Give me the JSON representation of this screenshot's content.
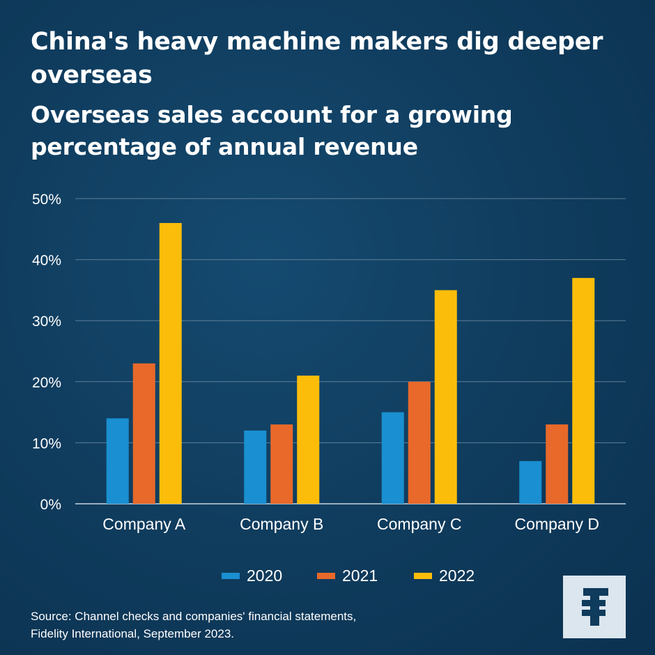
{
  "header": {
    "title": "China's heavy machine makers dig deeper overseas",
    "subtitle": "Overseas sales account for a growing percentage of annual revenue"
  },
  "chart_data": {
    "type": "bar",
    "categories": [
      "Company A",
      "Company B",
      "Company C",
      "Company D"
    ],
    "series": [
      {
        "name": "2020",
        "color": "#1a8fd1",
        "values": [
          14,
          12,
          15,
          7
        ]
      },
      {
        "name": "2021",
        "color": "#e8692a",
        "values": [
          23,
          13,
          20,
          13
        ]
      },
      {
        "name": "2022",
        "color": "#fbbd0a",
        "values": [
          46,
          21,
          35,
          37
        ]
      }
    ],
    "y_ticks": [
      "0%",
      "10%",
      "20%",
      "30%",
      "40%",
      "50%"
    ],
    "ylim": [
      0,
      50
    ],
    "xlabel": "",
    "ylabel": "",
    "grid": true,
    "legend_position": "bottom-center"
  },
  "footer": {
    "source_line1": "Source: Channel checks and companies' financial statements,",
    "source_line2": "Fidelity International, September 2023.",
    "logo_icon": "fidelity-logo-icon"
  }
}
